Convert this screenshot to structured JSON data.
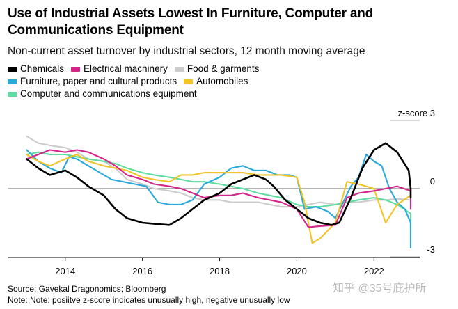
{
  "chart_data": {
    "type": "line",
    "title": "Use of Industrial Assets Lowest In Furniture, Computer and Communications Equipment",
    "subtitle": "Non-current asset turnover by industrial sectors, 12 month moving average",
    "ylabel": "z-score",
    "ylim": [
      -3,
      3
    ],
    "yticks": [
      3,
      0,
      -3
    ],
    "xlim": [
      2012.85,
      2022.95
    ],
    "xticks": [
      2014,
      2016,
      2018,
      2020,
      2022
    ],
    "grid": "horizontal",
    "legend_position": "top",
    "series": [
      {
        "name": "Chemicals",
        "color": "#000000",
        "x": [
          2013.0,
          2013.3,
          2013.6,
          2014.0,
          2014.3,
          2014.6,
          2015.0,
          2015.3,
          2015.6,
          2016.0,
          2016.3,
          2016.7,
          2017.0,
          2017.3,
          2017.6,
          2018.0,
          2018.3,
          2018.6,
          2018.9,
          2019.2,
          2019.4,
          2019.7,
          2020.0,
          2020.3,
          2020.6,
          2020.9,
          2021.1,
          2021.4,
          2021.7,
          2022.0,
          2022.3,
          2022.6,
          2022.9,
          2023.1,
          2023.4,
          2023.6,
          2023.8
        ],
        "y": [
          1.3,
          0.9,
          0.6,
          0.8,
          0.5,
          0.1,
          -0.3,
          -0.9,
          -1.3,
          -1.5,
          -1.55,
          -1.6,
          -1.3,
          -0.9,
          -0.5,
          -0.2,
          0.2,
          0.4,
          0.6,
          0.4,
          0.1,
          -0.5,
          -0.9,
          -1.3,
          -1.5,
          -1.6,
          -1.5,
          -0.4,
          0.9,
          1.7,
          2.0,
          1.6,
          0.8,
          0.0,
          -0.3,
          -0.4,
          -0.4
        ]
      },
      {
        "name": "Electrical machinery",
        "color": "#d4268a",
        "x": [
          2013.0,
          2013.3,
          2013.6,
          2014.0,
          2014.3,
          2014.6,
          2015.0,
          2015.3,
          2015.6,
          2016.0,
          2016.3,
          2016.7,
          2017.0,
          2017.3,
          2017.6,
          2018.0,
          2018.3,
          2018.6,
          2019.0,
          2019.3,
          2019.6,
          2020.0,
          2020.3,
          2020.6,
          2021.0,
          2021.3,
          2021.6,
          2022.0,
          2022.3,
          2022.6,
          2023.0,
          2023.3,
          2023.6,
          2023.8
        ],
        "y": [
          1.3,
          1.5,
          1.7,
          1.6,
          1.7,
          1.6,
          1.3,
          1.0,
          0.6,
          0.4,
          0.2,
          0.1,
          0.0,
          -0.2,
          -0.4,
          -0.3,
          -0.3,
          -0.2,
          -0.4,
          -0.5,
          -0.6,
          -0.9,
          -1.7,
          -1.65,
          -1.6,
          -0.4,
          -0.2,
          -0.1,
          0.0,
          0.1,
          -0.1,
          -0.3,
          -0.6,
          -0.9
        ]
      },
      {
        "name": "Food & garments",
        "color": "#cccccc",
        "x": [
          2013.0,
          2013.3,
          2013.6,
          2014.0,
          2014.3,
          2014.6,
          2015.0,
          2015.3,
          2015.6,
          2016.0,
          2016.3,
          2016.7,
          2017.0,
          2017.3,
          2017.6,
          2018.0,
          2018.3,
          2018.6,
          2019.0,
          2019.3,
          2019.6,
          2020.0,
          2020.3,
          2020.6,
          2021.0,
          2021.3,
          2021.6,
          2022.0,
          2022.3,
          2022.6,
          2023.0,
          2023.3,
          2023.6,
          2023.8
        ],
        "y": [
          2.3,
          2.0,
          1.9,
          1.8,
          1.6,
          1.3,
          1.2,
          0.9,
          0.4,
          0.2,
          0.0,
          -0.1,
          -0.2,
          -0.4,
          -0.5,
          -0.5,
          -0.6,
          -0.6,
          -0.6,
          -0.7,
          -0.8,
          -0.8,
          -0.7,
          -0.6,
          -0.7,
          -0.6,
          -0.6,
          -0.5,
          -0.5,
          -0.45,
          -0.5,
          -0.45,
          -0.5,
          -0.5
        ]
      },
      {
        "name": "Furniture, paper and cultural products",
        "color": "#2aa8d8",
        "x": [
          2013.0,
          2013.3,
          2013.6,
          2013.9,
          2014.1,
          2014.3,
          2014.6,
          2014.9,
          2015.2,
          2015.5,
          2015.8,
          2016.1,
          2016.4,
          2016.7,
          2017.0,
          2017.3,
          2017.6,
          2018.0,
          2018.3,
          2018.6,
          2018.9,
          2019.2,
          2019.5,
          2019.8,
          2020.0,
          2020.2,
          2020.5,
          2020.8,
          2021.0,
          2021.2,
          2021.4,
          2021.6,
          2021.8,
          2022.0,
          2022.2,
          2022.4,
          2022.6,
          2022.8,
          2023.0,
          2023.2,
          2023.4,
          2023.6,
          2023.8
        ],
        "y": [
          1.7,
          1.2,
          0.9,
          0.7,
          1.4,
          1.3,
          1.0,
          0.7,
          0.4,
          0.3,
          0.2,
          0.1,
          -0.6,
          -0.7,
          -0.7,
          -0.5,
          0.2,
          0.5,
          0.9,
          1.0,
          0.8,
          0.8,
          0.6,
          0.6,
          0.5,
          -0.9,
          -0.8,
          -1.0,
          -1.3,
          -0.6,
          0.1,
          0.5,
          1.5,
          1.2,
          1.0,
          0.0,
          -0.6,
          -0.9,
          -1.5,
          -2.0,
          -2.4,
          -2.5,
          -2.6
        ]
      },
      {
        "name": "Automobiles",
        "color": "#f2c42a",
        "x": [
          2013.0,
          2013.3,
          2013.6,
          2014.0,
          2014.3,
          2014.6,
          2015.0,
          2015.3,
          2015.6,
          2016.0,
          2016.3,
          2016.7,
          2017.0,
          2017.3,
          2017.6,
          2018.0,
          2018.3,
          2018.6,
          2019.0,
          2019.3,
          2019.6,
          2020.0,
          2020.2,
          2020.4,
          2020.6,
          2021.0,
          2021.3,
          2021.6,
          2022.0,
          2022.3,
          2022.6,
          2023.0,
          2023.2,
          2023.4,
          2023.6,
          2023.8
        ],
        "y": [
          1.5,
          1.2,
          1.0,
          1.3,
          1.5,
          1.2,
          1.0,
          0.9,
          0.8,
          0.5,
          0.4,
          0.3,
          0.6,
          0.6,
          0.7,
          0.7,
          0.7,
          0.7,
          0.6,
          0.6,
          0.6,
          0.5,
          -0.6,
          -2.4,
          -2.2,
          -1.5,
          0.3,
          0.2,
          0.0,
          -1.5,
          -0.7,
          -0.3,
          -0.2,
          -0.1,
          0.0,
          0.1
        ]
      },
      {
        "name": "Computer and communications equipment",
        "color": "#5fdca0",
        "x": [
          2013.0,
          2013.3,
          2013.6,
          2014.0,
          2014.3,
          2014.6,
          2015.0,
          2015.3,
          2015.6,
          2016.0,
          2016.3,
          2016.7,
          2017.0,
          2017.3,
          2017.6,
          2018.0,
          2018.3,
          2018.6,
          2019.0,
          2019.3,
          2019.6,
          2020.0,
          2020.3,
          2020.6,
          2021.0,
          2021.3,
          2021.6,
          2022.0,
          2022.3,
          2022.6,
          2023.0,
          2023.3,
          2023.6,
          2023.8
        ],
        "y": [
          1.5,
          1.6,
          1.5,
          1.5,
          1.4,
          1.3,
          1.2,
          1.1,
          0.9,
          0.7,
          0.6,
          0.5,
          0.4,
          0.3,
          0.3,
          0.2,
          0.1,
          0.0,
          -0.2,
          -0.3,
          -0.4,
          -0.7,
          -0.8,
          -0.8,
          -0.7,
          -0.6,
          -0.5,
          -0.4,
          -0.5,
          -0.7,
          -1.1,
          -1.4,
          -1.7,
          -1.8
        ]
      }
    ]
  },
  "footer": {
    "source": "Source: Gavekal Dragonomics; Bloomberg",
    "note": "Note: Note: posiitve z-score indicates unusually high, negative unusually low"
  },
  "watermark": "知乎 @35号庇护所"
}
